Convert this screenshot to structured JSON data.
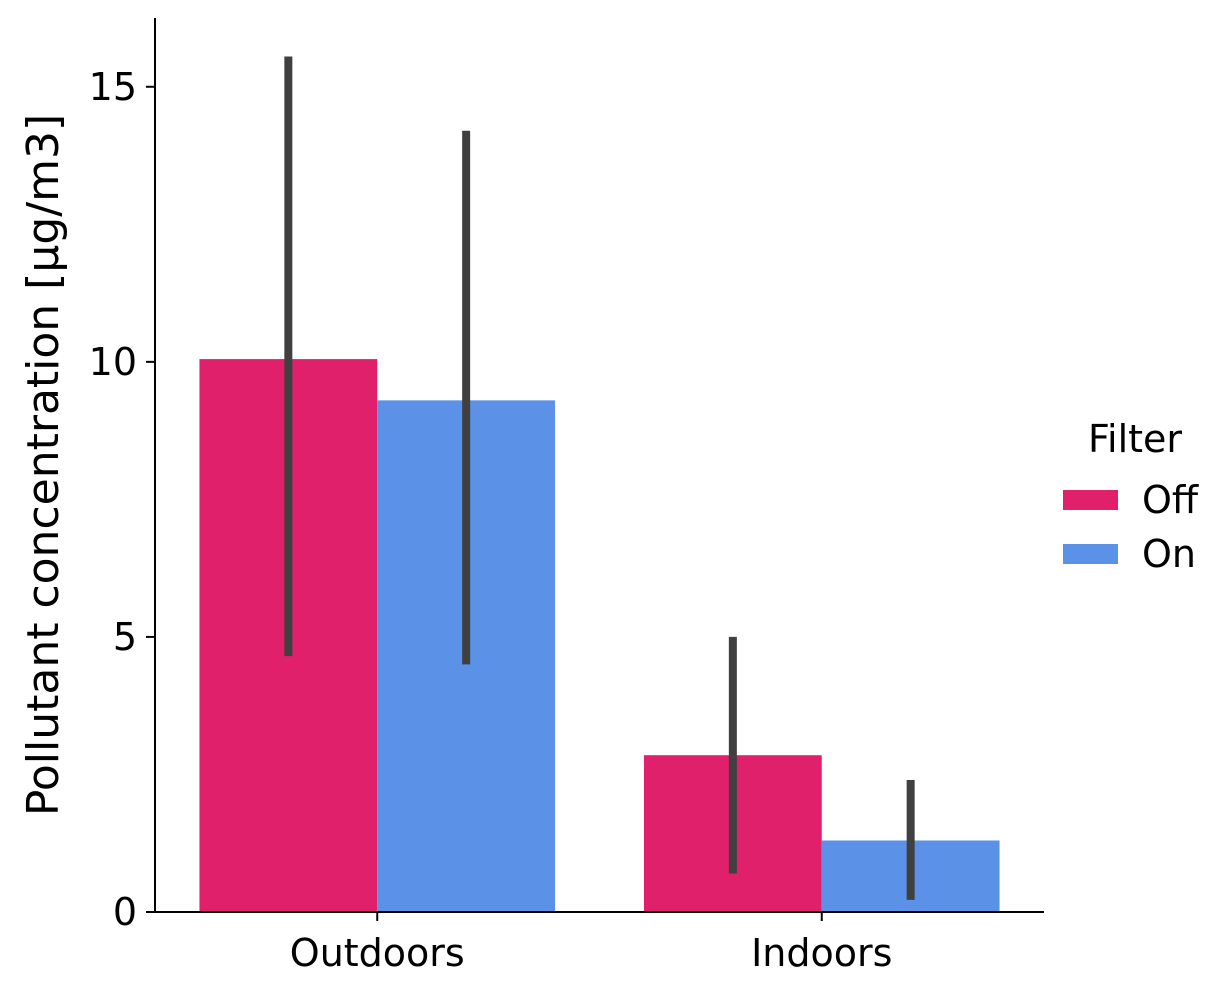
{
  "chart_data": {
    "type": "bar",
    "categories": [
      "Outdoors",
      "Indoors"
    ],
    "series": [
      {
        "name": "Off",
        "values": [
          10.05,
          2.85
        ],
        "ci_low": [
          4.65,
          0.7
        ],
        "ci_high": [
          15.55,
          5.0
        ]
      },
      {
        "name": "On",
        "values": [
          9.3,
          1.3
        ],
        "ci_low": [
          4.5,
          0.22
        ],
        "ci_high": [
          14.2,
          2.4
        ]
      }
    ],
    "xlabel": "",
    "ylabel": "Pollutant concentration [µg/m3]",
    "ylim": [
      0,
      16.25
    ],
    "yticks": [
      0,
      5,
      10,
      15
    ],
    "legend_title": "Filter",
    "legend_placement": "right",
    "grid": false,
    "colors": {
      "Off": "#e0206a",
      "On": "#5b91e6",
      "errorbar": "#404040",
      "axis": "#000000"
    }
  }
}
